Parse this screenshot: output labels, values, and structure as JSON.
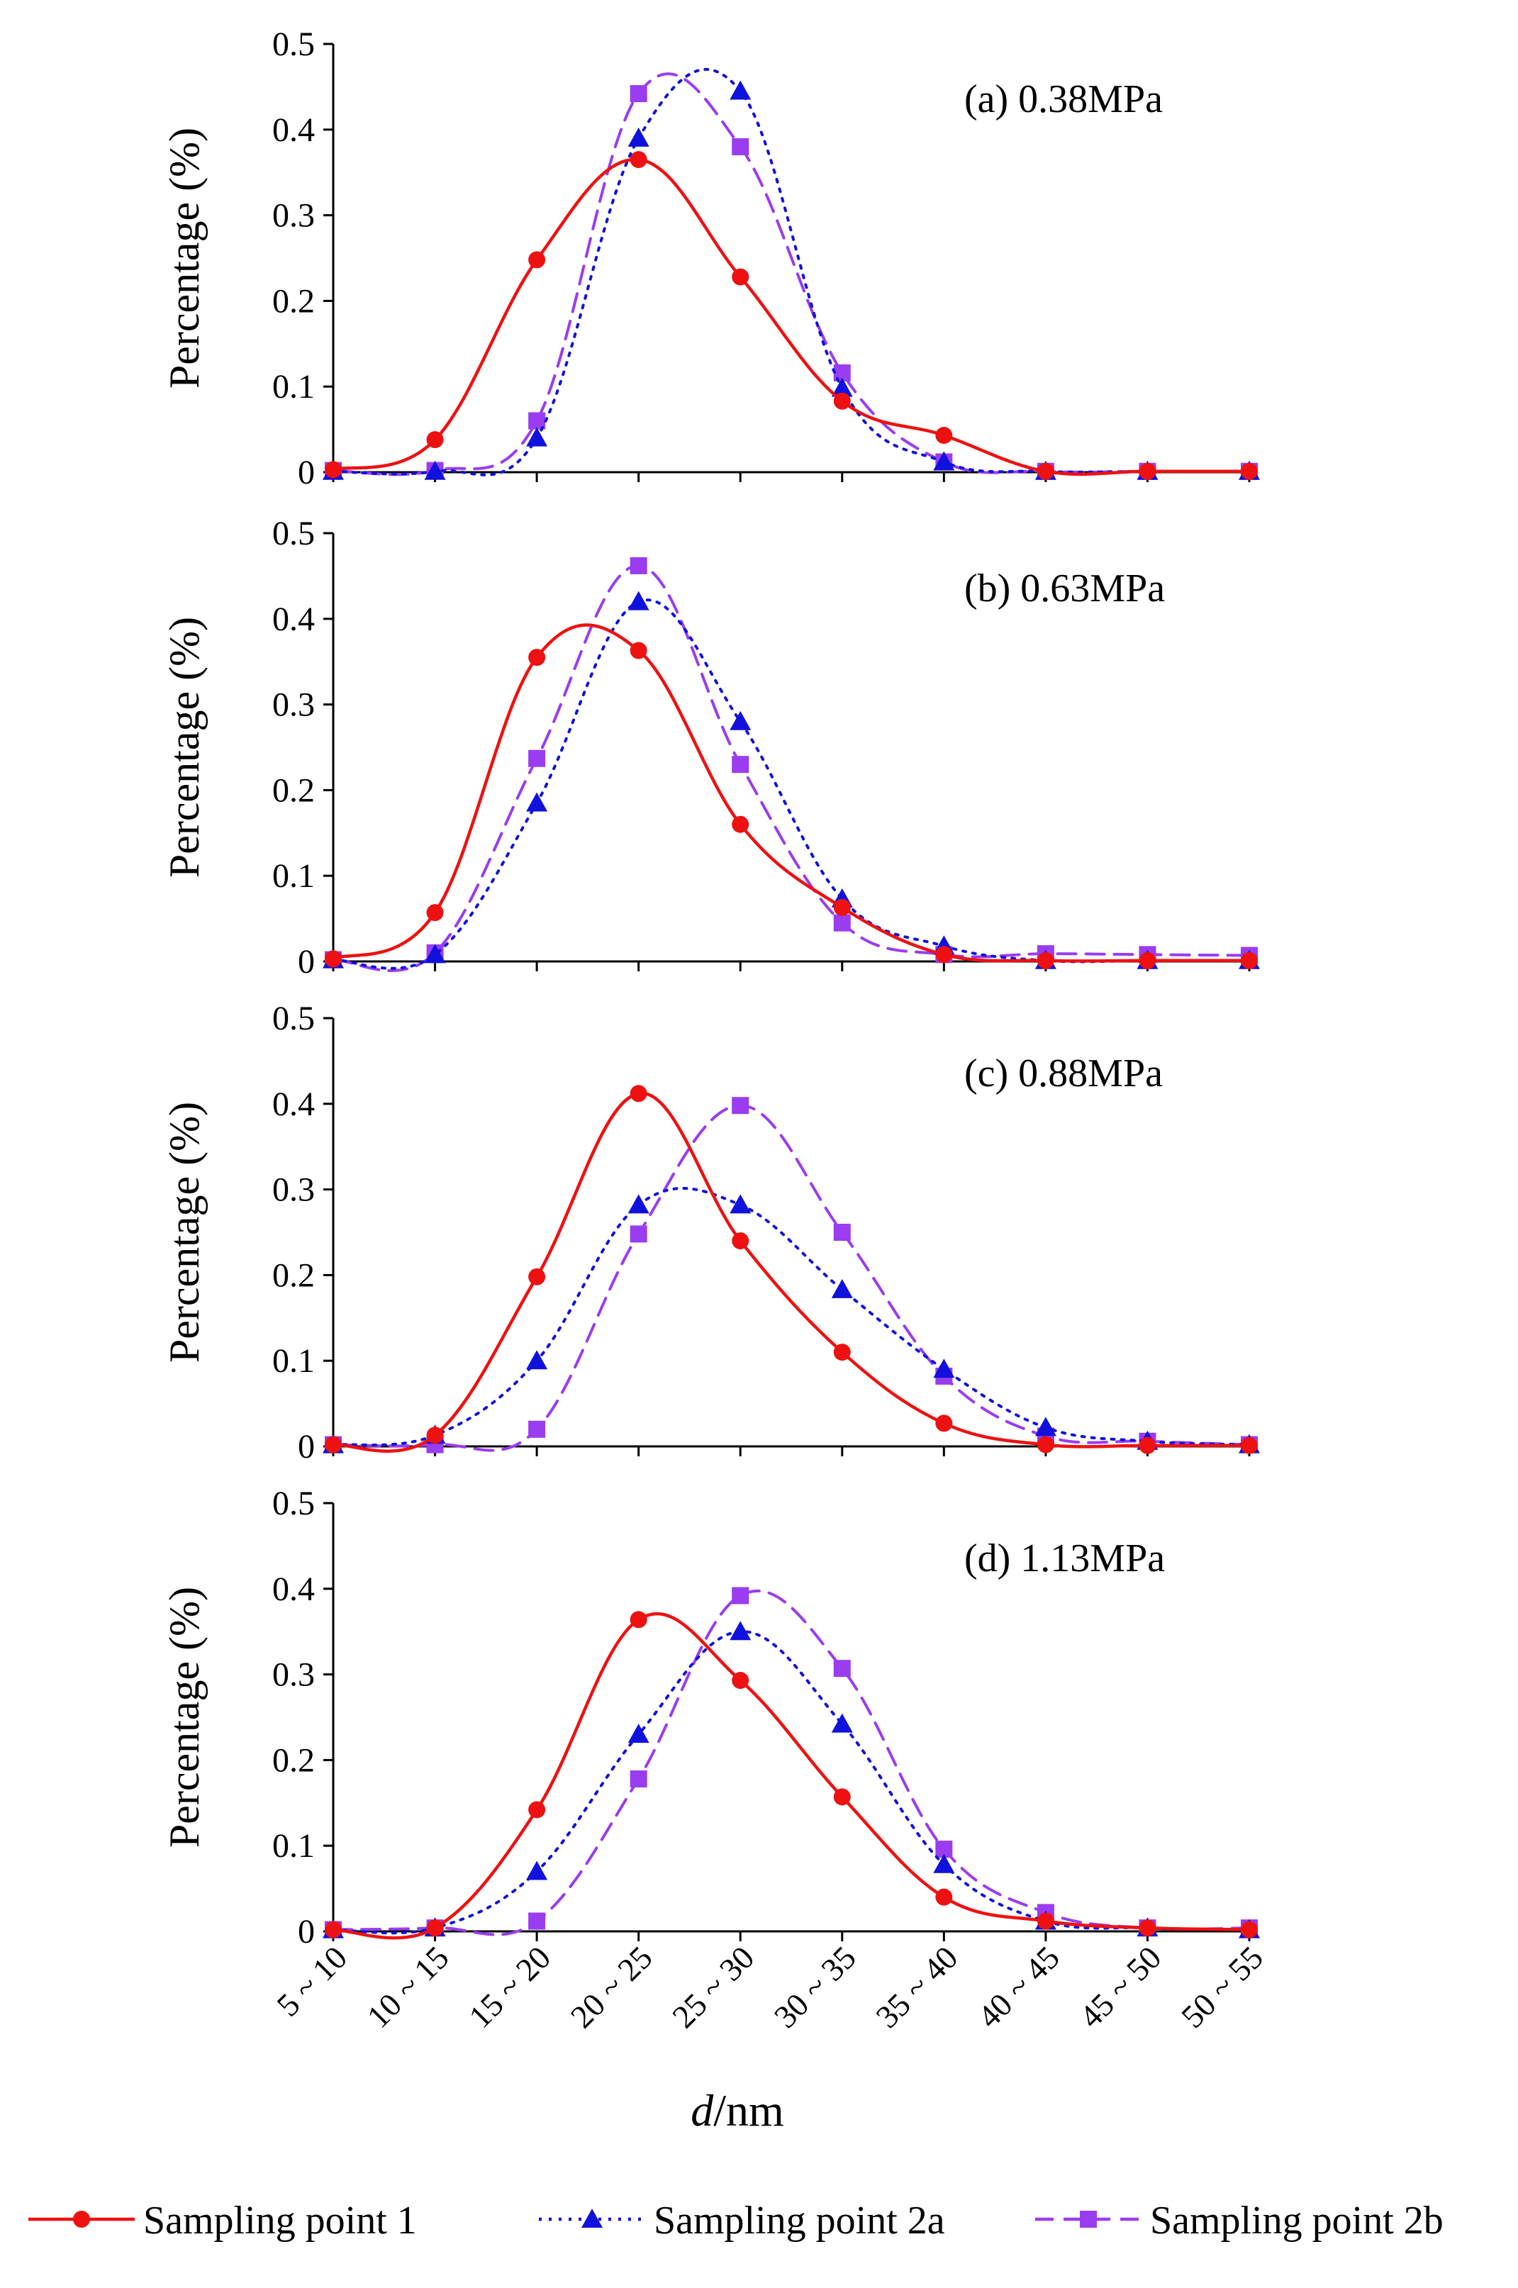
{
  "chart_data": [
    {
      "type": "line",
      "title": "(a) 0.38MPa",
      "ylabel": "Percentage (%)",
      "xlabel": "",
      "ylim": [
        0,
        0.5
      ],
      "yticks": [
        "0",
        "0.1",
        "0.2",
        "0.3",
        "0.4",
        "0.5"
      ],
      "categories": [
        "5 ~ 10",
        "10 ~ 15",
        "15 ~ 20",
        "20 ~ 25",
        "25 ~ 30",
        "30 ~ 35",
        "35 ~ 40",
        "40 ~ 45",
        "45 ~ 50",
        "50 ~ 55"
      ],
      "series": [
        {
          "name": "Sampling point 1",
          "values": [
            0.003,
            0.038,
            0.248,
            0.365,
            0.228,
            0.083,
            0.043,
            0.001,
            0.001,
            0.001
          ]
        },
        {
          "name": "Sampling point 2a",
          "values": [
            0.001,
            0.001,
            0.04,
            0.39,
            0.445,
            0.098,
            0.012,
            0.001,
            0.001,
            0.001
          ]
        },
        {
          "name": "Sampling point 2b",
          "values": [
            0.002,
            0.002,
            0.06,
            0.442,
            0.38,
            0.116,
            0.012,
            0.001,
            0.001,
            0.001
          ]
        }
      ]
    },
    {
      "type": "line",
      "title": "(b) 0.63MPa",
      "ylabel": "Percentage (%)",
      "xlabel": "",
      "ylim": [
        0,
        0.5
      ],
      "yticks": [
        "0",
        "0.1",
        "0.2",
        "0.3",
        "0.4",
        "0.5"
      ],
      "categories": [
        "5 ~ 10",
        "10 ~ 15",
        "15 ~ 20",
        "20 ~ 25",
        "25 ~ 30",
        "30 ~ 35",
        "35 ~ 40",
        "40 ~ 45",
        "45 ~ 50",
        "50 ~ 55"
      ],
      "series": [
        {
          "name": "Sampling point 1",
          "values": [
            0.003,
            0.057,
            0.355,
            0.363,
            0.16,
            0.063,
            0.008,
            0.001,
            0.001,
            0.001
          ]
        },
        {
          "name": "Sampling point 2a",
          "values": [
            0.002,
            0.008,
            0.185,
            0.42,
            0.28,
            0.073,
            0.018,
            0.001,
            0.001,
            0.001
          ]
        },
        {
          "name": "Sampling point 2b",
          "values": [
            0.002,
            0.01,
            0.237,
            0.462,
            0.23,
            0.045,
            0.008,
            0.009,
            0.008,
            0.007
          ]
        }
      ]
    },
    {
      "type": "line",
      "title": "(c) 0.88MPa",
      "ylabel": "Percentage (%)",
      "xlabel": "",
      "ylim": [
        0,
        0.5
      ],
      "yticks": [
        "0",
        "0.1",
        "0.2",
        "0.3",
        "0.4",
        "0.5"
      ],
      "categories": [
        "5 ~ 10",
        "10 ~ 15",
        "15 ~ 20",
        "20 ~ 25",
        "25 ~ 30",
        "30 ~ 35",
        "35 ~ 40",
        "40 ~ 45",
        "45 ~ 50",
        "50 ~ 55"
      ],
      "series": [
        {
          "name": "Sampling point 1",
          "values": [
            0.002,
            0.013,
            0.198,
            0.412,
            0.24,
            0.11,
            0.027,
            0.002,
            0.001,
            0.001
          ]
        },
        {
          "name": "Sampling point 2a",
          "values": [
            0.002,
            0.013,
            0.1,
            0.282,
            0.282,
            0.183,
            0.09,
            0.022,
            0.006,
            0.002
          ]
        },
        {
          "name": "Sampling point 2b",
          "values": [
            0.002,
            0.002,
            0.02,
            0.248,
            0.398,
            0.25,
            0.082,
            0.012,
            0.006,
            0.002
          ]
        }
      ]
    },
    {
      "type": "line",
      "title": "(d) 1.13MPa",
      "ylabel": "Percentage (%)",
      "xlabel": "d/nm",
      "ylim": [
        0,
        0.5
      ],
      "yticks": [
        "0",
        "0.1",
        "0.2",
        "0.3",
        "0.4",
        "0.5"
      ],
      "categories": [
        "5 ~ 10",
        "10 ~ 15",
        "15 ~ 20",
        "20 ~ 25",
        "25 ~ 30",
        "30 ~ 35",
        "35 ~ 40",
        "40 ~ 45",
        "45 ~ 50",
        "50 ~ 55"
      ],
      "series": [
        {
          "name": "Sampling point 1",
          "values": [
            0.002,
            0.004,
            0.142,
            0.364,
            0.293,
            0.157,
            0.04,
            0.012,
            0.004,
            0.002
          ]
        },
        {
          "name": "Sampling point 2a",
          "values": [
            0.002,
            0.004,
            0.07,
            0.23,
            0.35,
            0.242,
            0.078,
            0.012,
            0.004,
            0.002
          ]
        },
        {
          "name": "Sampling point 2b",
          "values": [
            0.002,
            0.004,
            0.012,
            0.178,
            0.392,
            0.307,
            0.096,
            0.022,
            0.004,
            0.004
          ]
        }
      ]
    }
  ],
  "axis": {
    "xlabel_italic": "d",
    "xlabel_rest": "/nm"
  },
  "legend": {
    "items": [
      {
        "name": "Sampling point 1",
        "color": "#ee1111",
        "marker": "circle",
        "dash": "solid"
      },
      {
        "name": "Sampling point 2a",
        "color": "#1111dd",
        "marker": "triangle",
        "dash": "dotted"
      },
      {
        "name": "Sampling point 2b",
        "color": "#9a3cf0",
        "marker": "square",
        "dash": "dashed"
      }
    ]
  }
}
